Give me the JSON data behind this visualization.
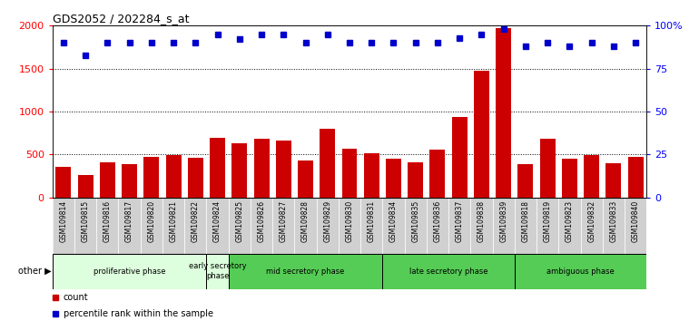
{
  "title": "GDS2052 / 202284_s_at",
  "samples": [
    "GSM109814",
    "GSM109815",
    "GSM109816",
    "GSM109817",
    "GSM109820",
    "GSM109821",
    "GSM109822",
    "GSM109824",
    "GSM109825",
    "GSM109826",
    "GSM109827",
    "GSM109828",
    "GSM109829",
    "GSM109830",
    "GSM109831",
    "GSM109834",
    "GSM109835",
    "GSM109836",
    "GSM109837",
    "GSM109838",
    "GSM109839",
    "GSM109818",
    "GSM109819",
    "GSM109823",
    "GSM109832",
    "GSM109833",
    "GSM109840"
  ],
  "counts": [
    360,
    265,
    410,
    385,
    475,
    495,
    465,
    695,
    635,
    680,
    660,
    425,
    800,
    565,
    510,
    450,
    410,
    555,
    940,
    1480,
    1970,
    390,
    680,
    455,
    490,
    400,
    475
  ],
  "percentile": [
    90,
    83,
    90,
    90,
    90,
    90,
    90,
    95,
    92,
    95,
    95,
    90,
    95,
    90,
    90,
    90,
    90,
    90,
    93,
    95,
    98,
    88,
    90,
    88,
    90,
    88,
    90
  ],
  "bar_color": "#cc0000",
  "dot_color": "#0000cc",
  "ylim_left": [
    0,
    2000
  ],
  "ylim_right": [
    0,
    100
  ],
  "yticks_left": [
    0,
    500,
    1000,
    1500,
    2000
  ],
  "yticks_right": [
    0,
    25,
    50,
    75,
    100
  ],
  "ytick_labels_right": [
    "0",
    "25",
    "50",
    "75",
    "100%"
  ],
  "phases_def": [
    {
      "label": "proliferative phase",
      "start": 0,
      "end": 7,
      "color": "#ddffdd"
    },
    {
      "label": "early secretory\nphase",
      "start": 7,
      "end": 8,
      "color": "#ddffdd"
    },
    {
      "label": "mid secretory phase",
      "start": 8,
      "end": 15,
      "color": "#55cc55"
    },
    {
      "label": "late secretory phase",
      "start": 15,
      "end": 21,
      "color": "#55cc55"
    },
    {
      "label": "ambiguous phase",
      "start": 21,
      "end": 27,
      "color": "#55cc55"
    }
  ]
}
